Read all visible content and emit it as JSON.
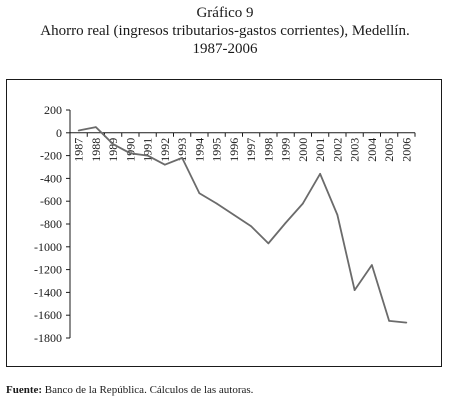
{
  "chart_data": {
    "type": "line",
    "title_lines": [
      "Gráfico 9",
      "Ahorro real (ingresos tributarios-gastos corrientes), Medellín.",
      "1987-2006"
    ],
    "categories": [
      "1987",
      "1988",
      "1989",
      "1990",
      "1991",
      "1992",
      "1993",
      "1994",
      "1995",
      "1996",
      "1997",
      "1998",
      "1999",
      "2000",
      "2001",
      "2002",
      "2003",
      "2004",
      "2005",
      "2006"
    ],
    "series": [
      {
        "values": [
          20,
          50,
          -100,
          -180,
          -200,
          -280,
          -220,
          -530,
          -620,
          -720,
          -820,
          -970,
          -790,
          -620,
          -360,
          -720,
          -1380,
          -1160,
          -1650,
          -1665
        ]
      }
    ],
    "yticks": [
      200,
      0,
      -200,
      -400,
      -600,
      -800,
      -1000,
      -1200,
      -1400,
      -1600,
      -1800
    ],
    "ylim": [
      -1800,
      200
    ],
    "xlabel": "",
    "ylabel": "",
    "grid": false,
    "line_color": "#6b6b6b",
    "axis_color": "#1a1a1a"
  },
  "source": {
    "label": "Fuente:",
    "text": " Banco de la República. Cálculos de las autoras."
  }
}
